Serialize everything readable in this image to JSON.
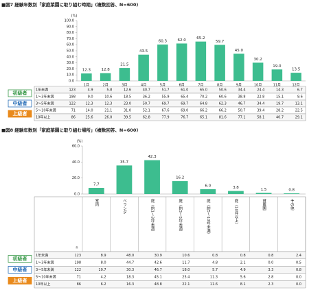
{
  "chart_data": [
    {
      "type": "bar",
      "title": "■図7 経験年数別「家庭菜園に取り組む時期」(複数回答、N=600)",
      "y_label": "(%)",
      "color": "#3dbd8f",
      "categories": [
        "1月",
        "2月",
        "3月",
        "4月",
        "5月",
        "6月",
        "7月",
        "8月",
        "9月",
        "10月",
        "11月",
        "12月"
      ],
      "values": [
        12.3,
        12.8,
        21.5,
        43.5,
        60.3,
        62.0,
        65.2,
        59.7,
        45.0,
        30.2,
        19.0,
        13.5
      ],
      "value_labels": [
        "12.3",
        "12.8",
        "21.5",
        "43.5",
        "60.3",
        "62.0",
        "65.2",
        "59.7",
        "45.0",
        "30.2",
        "19.0",
        "13.5"
      ],
      "ylim": [
        0,
        100
      ],
      "yticks": [
        {
          "value": 0,
          "label": "0.0"
        },
        {
          "value": 10,
          "label": "10.0"
        },
        {
          "value": 20,
          "label": "20.0"
        },
        {
          "value": 30,
          "label": "30.0"
        },
        {
          "value": 40,
          "label": "40.0"
        },
        {
          "value": 50,
          "label": "50.0"
        },
        {
          "value": 60,
          "label": "60.0"
        },
        {
          "value": 70,
          "label": "70.0"
        },
        {
          "value": 80,
          "label": "80.0"
        },
        {
          "value": 90,
          "label": "90.0"
        },
        {
          "value": 100,
          "label": "100.0"
        }
      ],
      "table": {
        "groups": [
          "初級者",
          "中級者",
          "上級者"
        ],
        "row_labels": [
          "1年未満",
          "1〜3年未満",
          "3〜5年未満",
          "5〜10年未満",
          "10年以上"
        ],
        "n": [
          "123",
          "198",
          "122",
          "71",
          "86"
        ],
        "rows": [
          [
            "4.9",
            "5.8",
            "12.6",
            "40.7",
            "51.7",
            "61.0",
            "65.0",
            "50.6",
            "34.4",
            "24.4",
            "14.3",
            "6.7"
          ],
          [
            "9.0",
            "10.6",
            "18.5",
            "36.2",
            "55.9",
            "65.4",
            "70.2",
            "60.6",
            "38.8",
            "22.8",
            "15.1",
            "9.6"
          ],
          [
            "12.3",
            "12.3",
            "23.0",
            "50.7",
            "69.7",
            "69.7",
            "64.8",
            "62.3",
            "46.7",
            "34.4",
            "19.7",
            "13.1"
          ],
          [
            "14.0",
            "21.1",
            "31.0",
            "52.1",
            "67.6",
            "69.0",
            "66.2",
            "66.2",
            "50.7",
            "39.4",
            "28.2",
            "22.5"
          ],
          [
            "25.6",
            "26.0",
            "39.5",
            "62.8",
            "77.9",
            "76.7",
            "65.1",
            "81.6",
            "77.1",
            "58.1",
            "40.7",
            "29.1"
          ]
        ]
      }
    },
    {
      "type": "bar",
      "title": "■図8 経験年数別「家庭菜園に取り組む場所」(複数回答、N=600)",
      "y_label": "(%)",
      "color": "#3dbd8f",
      "categories": [
        "室内",
        "ベランダ",
        "庭（約1〜3坪未満）",
        "庭（約3〜5坪未満）",
        "庭（約5〜10坪未満）",
        "庭（10坪以上）",
        "貸農園",
        "その他"
      ],
      "values": [
        7.7,
        35.7,
        42.3,
        16.2,
        6.0,
        3.8,
        1.5,
        0.8
      ],
      "value_labels": [
        "7.7",
        "35.7",
        "42.3",
        "16.2",
        "6.0",
        "3.8",
        "1.5",
        "0.8"
      ],
      "ylim": [
        0,
        60
      ],
      "yticks": [
        {
          "value": 0,
          "label": "0.0"
        },
        {
          "value": 20,
          "label": "20.0"
        },
        {
          "value": 40,
          "label": "40.0"
        },
        {
          "value": 60,
          "label": "60.0"
        }
      ],
      "table": {
        "groups": [
          "初級者",
          "中級者",
          "上級者"
        ],
        "n_header": "n",
        "row_labels": [
          "1年未満",
          "1〜3年未満",
          "3〜5年未満",
          "5〜10年未満",
          "10年以上"
        ],
        "n": [
          "123",
          "198",
          "122",
          "71",
          "86"
        ],
        "rows": [
          [
            "8.9",
            "48.0",
            "30.9",
            "10.6",
            "0.8",
            "0.8",
            "0.8",
            "2.4"
          ],
          [
            "8.0",
            "44.7",
            "42.6",
            "11.7",
            "4.8",
            "2.1",
            "0.0",
            "0.5"
          ],
          [
            "10.7",
            "30.3",
            "46.7",
            "18.0",
            "5.7",
            "4.9",
            "3.3",
            "0.8"
          ],
          [
            "4.2",
            "18.3",
            "45.1",
            "25.4",
            "11.3",
            "5.6",
            "2.8",
            "0.0"
          ],
          [
            "6.2",
            "16.3",
            "48.8",
            "22.1",
            "11.6",
            "8.1",
            "2.3",
            "0.0"
          ]
        ]
      }
    }
  ]
}
